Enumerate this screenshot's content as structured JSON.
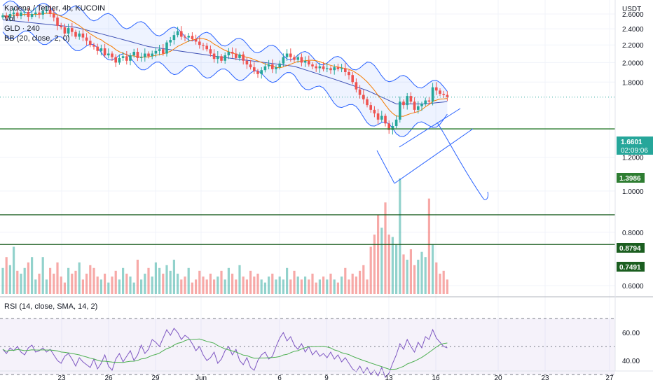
{
  "header": {
    "symbol_line": "Kadena / Tether, 4h, KUCOIN",
    "vol_label": "Vol",
    "gld_label": "GLD · 240",
    "bb_label": "BB (20, close, 2, 0)",
    "currency": "USDT"
  },
  "rsi": {
    "label": "RSI (14, close, SMA, 14, 2)",
    "ticks": [
      "60.00",
      "40.00"
    ],
    "upper": 70,
    "lower": 30
  },
  "price_axis": {
    "ticks": [
      "2.6000",
      "2.4000",
      "2.2000",
      "2.0000",
      "1.8000",
      "1.2000",
      "1.0000",
      "0.8000",
      "0.6000"
    ]
  },
  "x_axis": {
    "labels": [
      "23",
      "26",
      "29",
      "Jun",
      "6",
      "9",
      "13",
      "16",
      "20",
      "23",
      "27"
    ]
  },
  "tags": {
    "current_price": "1.6601",
    "countdown": "02:09:06",
    "support_1": "1.3986",
    "support_2": "0.8794",
    "support_3": "0.7491"
  },
  "colors": {
    "up": "#26a69a",
    "down": "#ef5350",
    "bb": "#2962ff",
    "basis": "#f57c00",
    "support": "#43a047",
    "rsi_line": "#7e57c2",
    "rsi_ma": "#4caf50",
    "current": "#26a69a"
  },
  "chart_data": {
    "type": "candlestick",
    "timeframe": "4h",
    "y_scale": "log",
    "horizontal_levels": [
      1.3986,
      0.8794,
      0.7491
    ],
    "current_price": 1.6601,
    "closes": [
      2.58,
      2.55,
      2.6,
      2.62,
      2.57,
      2.62,
      2.63,
      2.56,
      2.6,
      2.62,
      2.59,
      2.64,
      2.66,
      2.6,
      2.55,
      2.44,
      2.42,
      2.34,
      2.41,
      2.36,
      2.3,
      2.34,
      2.29,
      2.25,
      2.2,
      2.18,
      2.13,
      2.16,
      2.08,
      2.1,
      2.06,
      2.0,
      2.05,
      2.07,
      2.02,
      2.08,
      2.12,
      2.05,
      2.06,
      2.1,
      2.07,
      2.1,
      2.13,
      2.15,
      2.1,
      2.23,
      2.26,
      2.32,
      2.37,
      2.3,
      2.29,
      2.31,
      2.27,
      2.24,
      2.2,
      2.19,
      2.15,
      2.1,
      2.04,
      2.07,
      2.02,
      2.08,
      2.12,
      2.1,
      2.05,
      2.09,
      2.02,
      1.98,
      1.95,
      1.91,
      1.88,
      1.92,
      1.96,
      1.98,
      1.93,
      1.95,
      1.99,
      2.06,
      2.1,
      2.06,
      2.03,
      2.06,
      2.0,
      2.02,
      1.98,
      1.96,
      1.94,
      1.96,
      1.93,
      1.94,
      1.92,
      1.95,
      1.93,
      1.94,
      1.9,
      1.87,
      1.8,
      1.73,
      1.68,
      1.64,
      1.59,
      1.55,
      1.52,
      1.47,
      1.5,
      1.44,
      1.39,
      1.42,
      1.47,
      1.62,
      1.59,
      1.67,
      1.62,
      1.55,
      1.58,
      1.6,
      1.63,
      1.62,
      1.75,
      1.72,
      1.69,
      1.68,
      1.66
    ],
    "volumes": [
      0.66,
      0.7,
      0.67,
      0.74,
      0.65,
      0.64,
      0.66,
      0.68,
      0.7,
      0.62,
      0.64,
      0.7,
      0.62,
      0.66,
      0.64,
      0.68,
      0.63,
      0.61,
      0.66,
      0.64,
      0.65,
      0.68,
      0.62,
      0.64,
      0.67,
      0.66,
      0.63,
      0.62,
      0.64,
      0.61,
      0.63,
      0.65,
      0.62,
      0.66,
      0.64,
      0.63,
      0.61,
      0.69,
      0.62,
      0.64,
      0.66,
      0.63,
      0.68,
      0.66,
      0.64,
      0.67,
      0.65,
      0.69,
      0.64,
      0.62,
      0.63,
      0.66,
      0.61,
      0.62,
      0.65,
      0.63,
      0.62,
      0.64,
      0.62,
      0.63,
      0.65,
      0.62,
      0.66,
      0.64,
      0.62,
      0.67,
      0.63,
      0.62,
      0.65,
      0.63,
      0.64,
      0.62,
      0.61,
      0.63,
      0.64,
      0.62,
      0.63,
      0.62,
      0.66,
      0.62,
      0.65,
      0.63,
      0.62,
      0.63,
      0.62,
      0.64,
      0.61,
      0.62,
      0.63,
      0.62,
      0.64,
      0.62,
      0.61,
      0.63,
      0.66,
      0.62,
      0.64,
      0.63,
      0.65,
      0.67,
      0.62,
      0.74,
      0.79,
      0.88,
      0.82,
      0.94,
      0.79,
      0.78,
      0.75,
      1.07,
      0.71,
      0.69,
      0.73,
      0.67,
      0.69,
      0.72,
      0.7,
      0.96,
      0.75,
      0.68,
      0.64,
      0.65,
      0.62
    ],
    "rsi": [
      48,
      45,
      49,
      47,
      50,
      46,
      44,
      49,
      51,
      46,
      47,
      49,
      46,
      48,
      44,
      40,
      38,
      43,
      45,
      41,
      36,
      42,
      39,
      37,
      35,
      41,
      34,
      38,
      44,
      36,
      33,
      41,
      45,
      39,
      43,
      47,
      40,
      44,
      51,
      45,
      48,
      55,
      53,
      50,
      56,
      62,
      58,
      63,
      60,
      55,
      58,
      56,
      52,
      47,
      50,
      44,
      40,
      42,
      46,
      38,
      41,
      47,
      50,
      44,
      48,
      40,
      37,
      42,
      35,
      33,
      40,
      44,
      46,
      41,
      43,
      50,
      56,
      60,
      54,
      57,
      51,
      48,
      52,
      46,
      50,
      44,
      47,
      43,
      45,
      42,
      46,
      41,
      44,
      39,
      42,
      38,
      34,
      32,
      36,
      31,
      35,
      30,
      33,
      29,
      35,
      28,
      31,
      38,
      44,
      52,
      48,
      55,
      50,
      46,
      53,
      49,
      57,
      55,
      62,
      56,
      53,
      50,
      49
    ],
    "bb_upper_at": [
      [
        0,
        2.72
      ],
      [
        20,
        2.64
      ],
      [
        40,
        2.4
      ],
      [
        60,
        2.26
      ],
      [
        80,
        2.08
      ],
      [
        100,
        1.96
      ],
      [
        108,
        1.82
      ],
      [
        116,
        1.79
      ],
      [
        122,
        1.74
      ]
    ],
    "bb_lower_at": [
      [
        0,
        2.36
      ],
      [
        20,
        2.2
      ],
      [
        40,
        1.96
      ],
      [
        60,
        1.88
      ],
      [
        80,
        1.84
      ],
      [
        100,
        1.48
      ],
      [
        108,
        1.37
      ],
      [
        116,
        1.42
      ],
      [
        122,
        1.49
      ]
    ],
    "bb_basis_at": [
      [
        0,
        2.52
      ],
      [
        20,
        2.42
      ],
      [
        40,
        2.18
      ],
      [
        60,
        2.06
      ],
      [
        80,
        1.96
      ],
      [
        100,
        1.72
      ],
      [
        108,
        1.6
      ],
      [
        116,
        1.6
      ],
      [
        122,
        1.62
      ]
    ],
    "dates_labels": [
      "23",
      "26",
      "29",
      "Jun",
      "6",
      "9",
      "13",
      "16",
      "20",
      "23",
      "27"
    ]
  }
}
